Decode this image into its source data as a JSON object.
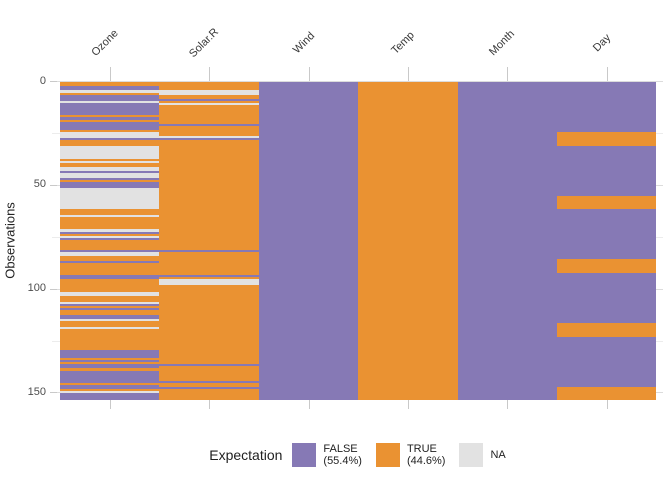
{
  "y_axis": {
    "title": "Observations",
    "ticks": [
      "0",
      "50",
      "100",
      "150"
    ]
  },
  "legend": {
    "title": "Expectation",
    "items": [
      {
        "label": "FALSE",
        "sublabel": "(55.4%)",
        "color": "#8679B5",
        "key": "F"
      },
      {
        "label": "TRUE",
        "sublabel": "(44.6%)",
        "color": "#EA9232",
        "key": "T"
      },
      {
        "label": "NA",
        "sublabel": "",
        "color": "#E2E2E2",
        "key": "N"
      }
    ]
  },
  "chart_data": {
    "type": "heatmap",
    "ylabel": "Observations",
    "n_observations": 153,
    "y_ticks": [
      0,
      50,
      100,
      150
    ],
    "y_minor_ticks": [
      25,
      75,
      125
    ],
    "legend_title": "Expectation",
    "false_pct": 55.4,
    "true_pct": 44.6,
    "value_colors": {
      "T": "#EA9232",
      "F": "#8679B5",
      "N": "#E2E2E2"
    },
    "value_labels": {
      "T": "TRUE (44.6%)",
      "F": "FALSE (55.4%)",
      "N": "NA"
    },
    "columns": [
      {
        "name": "Ozone",
        "values": [
          "TTFFNTFFFN",
          "FFFFFFTFTF",
          "FFFTNNNFTT",
          "TNNNNNNTNT",
          "TNNFNNFTFF",
          "FNNNNNNNNN",
          "NTTTNTTTTT",
          "TNFTNFTTTT",
          "TFNNTTFTTT",
          "TTTFFTTTTT",
          "TNNTTTNFTF",
          "TTFFNTTTNT",
          "TTTTTTTTTF",
          "FFFTFTFFTF",
          "FFFFFTFFTN",
          "FFF"
        ]
      },
      {
        "name": "Solar.R",
        "values": [
          "TTTTNNTTFT",
          "NTTTTTTTTT",
          "FTTTTTNFTT",
          "TTTTTTTTTT",
          "TTTTTTTTTT",
          "TTTTTTTTTT",
          "TTTTTTTTTT",
          "TTTTTTTTTT",
          "TFTTTTTTTT",
          "TTTFTNNNTT",
          "TTTTTTTTTT",
          "TTTTTTTTTT",
          "TTTTTTTTTT",
          "TTTTTTFTTT",
          "TTTTFTTFTT",
          "TTT"
        ]
      },
      {
        "name": "Wind",
        "values": [
          "FFFFFFFFFF",
          "FFFFFFFFFF",
          "FFFFFFFFFF",
          "FFFFFFFFFF",
          "FFFFFFFFFF",
          "FFFFFFFFFF",
          "FFFFFFFFFF",
          "FFFFFFFFFF",
          "FFFFFFFFFF",
          "FFFFFFFFFF",
          "FFFFFFFFFF",
          "FFFFFFFFFF",
          "FFFFFFFFFF",
          "FFFFFFFFFF",
          "FFFFFFFFFF",
          "FFF"
        ]
      },
      {
        "name": "Temp",
        "values": [
          "TTTTTTTTTT",
          "TTTTTTTTTT",
          "TTTTTTTTTT",
          "TTTTTTTTTT",
          "TTTTTTTTTT",
          "TTTTTTTTTT",
          "TTTTTTTTTT",
          "TTTTTTTTTT",
          "TTTTTTTTTT",
          "TTTTTTTTTT",
          "TTTTTTTTTT",
          "TTTTTTTTTT",
          "TTTTTTTTTT",
          "TTTTTTTTTT",
          "TTTTTTTTTT",
          "TTT"
        ]
      },
      {
        "name": "Month",
        "values": [
          "FFFFFFFFFF",
          "FFFFFFFFFF",
          "FFFFFFFFFF",
          "FFFFFFFFFF",
          "FFFFFFFFFF",
          "FFFFFFFFFF",
          "FFFFFFFFFF",
          "FFFFFFFFFF",
          "FFFFFFFFFF",
          "FFFFFFFFFF",
          "FFFFFFFFFF",
          "FFFFFFFFFF",
          "FFFFFFFFFF",
          "FFFFFFFFFF",
          "FFFFFFFFFF",
          "FFF"
        ]
      },
      {
        "name": "Day",
        "values": [
          "FFFFFFFFFF",
          "FFFFFFFFFF",
          "FFFFTTTTTT",
          "TFFFFFFFFF",
          "FFFFFFFFFF",
          "FFFFFTTTTT",
          "TFFFFFFFFF",
          "FFFFFFFFFF",
          "FFFFFTTTTT",
          "TTFFFFFFFF",
          "FFFFFFFFFF",
          "FFFFFFTTTT",
          "TTTFFFFFFF",
          "FFFFFFFFFF",
          "FFFFFFFTTT",
          "TTT"
        ]
      }
    ]
  }
}
